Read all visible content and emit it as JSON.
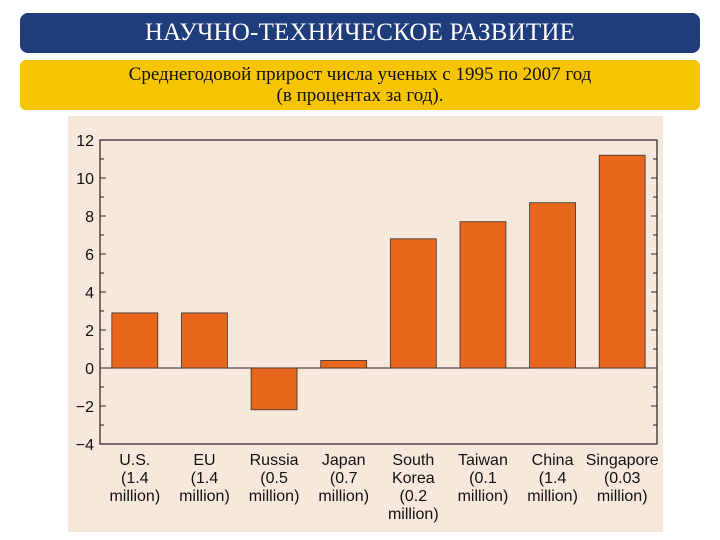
{
  "header": {
    "title": "НАУЧНО-ТЕХНИЧЕСКОЕ РАЗВИТИЕ",
    "subtitle_line1": "Среднегодовой прирост числа ученых с 1995 по 2007 год",
    "subtitle_line2": "(в процентах за год)."
  },
  "colors": {
    "title_bar": "#1f3d7a",
    "subtitle_bar": "#f6c400",
    "bar_fill": "#e8671d",
    "panel_bg": "#f6e9dc"
  },
  "chart_data": {
    "type": "bar",
    "title": "",
    "xlabel": "",
    "ylabel": "",
    "ylim": [
      -4,
      12
    ],
    "yticks": [
      "12",
      "10",
      "8",
      "6",
      "4",
      "2",
      "0",
      "−2",
      "−4"
    ],
    "categories": [
      [
        "U.S.",
        "(1.4",
        "million)"
      ],
      [
        "EU",
        "(1.4",
        "million)"
      ],
      [
        "Russia",
        "(0.5",
        "million)"
      ],
      [
        "Japan",
        "(0.7",
        "million)"
      ],
      [
        "South",
        "Korea",
        "(0.2",
        "million)"
      ],
      [
        "Taiwan",
        "(0.1",
        "million)"
      ],
      [
        "China",
        "(1.4",
        "million)"
      ],
      [
        "Singapore",
        "(0.03",
        "million)"
      ]
    ],
    "values": [
      2.9,
      2.9,
      -2.2,
      0.4,
      6.8,
      7.7,
      8.7,
      11.2
    ],
    "grid": false,
    "legend": "none"
  }
}
